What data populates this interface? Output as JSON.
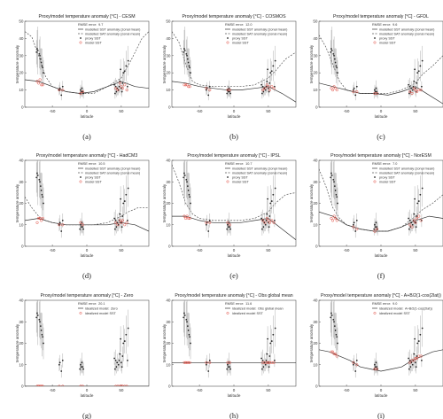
{
  "figure": {
    "colors": {
      "data": "#222222",
      "error_bar": "#9a9a9a",
      "model": "#e0483d",
      "sst_line": "#333333",
      "sat_line": "#555555"
    },
    "common_xlabel": "latitude",
    "common_ylabel": "temperature anomaly",
    "proxy_sst": {
      "lat": [
        -73,
        -72,
        -71,
        -69,
        -68,
        -67,
        -66,
        -65,
        -64,
        -63,
        -40,
        -39,
        -37,
        -35,
        -10,
        -9,
        -8,
        -7,
        -6,
        -5,
        40,
        41,
        42,
        43,
        44,
        46,
        47,
        48,
        49,
        50,
        51,
        52,
        53,
        55,
        57,
        59,
        60
      ],
      "value": [
        32,
        34,
        33,
        31,
        30,
        28,
        26,
        24,
        23,
        20,
        10,
        11,
        7,
        12,
        8,
        10,
        9,
        11,
        9,
        8,
        13,
        8,
        12,
        9,
        11,
        10,
        12,
        15,
        22,
        11,
        9,
        14,
        20,
        21,
        24,
        12,
        27
      ]
    },
    "row_headers": [
      "RMSE error:",
      "modelled SST anomaly (zonal mean)",
      "modelled SAT anomaly (zonal mean)",
      "proxy SST",
      "model SST",
      "idealized model:",
      "idealized model SST"
    ]
  },
  "panels": [
    {
      "letter": "(a)",
      "title": "Proxy/model temperature anomaly [°C] - CESM",
      "xlabel": "latitude",
      "ylabel": "temperature anomaly",
      "rmse": "9.7",
      "ylim": [
        0,
        50
      ],
      "legend": "top-right",
      "model_sst": [
        [
          -72,
          15
        ],
        [
          -70,
          14
        ],
        [
          -68,
          16
        ],
        [
          -66,
          13
        ],
        [
          -64,
          13
        ],
        [
          -40,
          10
        ],
        [
          -35,
          10
        ],
        [
          -9,
          8
        ],
        [
          -6,
          9
        ],
        [
          42,
          11
        ],
        [
          45,
          10
        ],
        [
          48,
          14
        ],
        [
          50,
          12
        ],
        [
          52,
          11
        ],
        [
          55,
          13
        ],
        [
          58,
          10
        ]
      ],
      "sst_line": [
        [
          -90,
          16
        ],
        [
          -70,
          15
        ],
        [
          -50,
          12
        ],
        [
          -30,
          9
        ],
        [
          -10,
          8
        ],
        [
          10,
          9
        ],
        [
          30,
          12
        ],
        [
          50,
          15
        ],
        [
          70,
          12
        ],
        [
          90,
          11
        ]
      ],
      "sat_line": [
        [
          -90,
          44
        ],
        [
          -80,
          41
        ],
        [
          -70,
          30
        ],
        [
          -60,
          18
        ],
        [
          -50,
          12
        ],
        [
          -30,
          9
        ],
        [
          -10,
          8
        ],
        [
          10,
          8
        ],
        [
          30,
          12
        ],
        [
          50,
          17
        ],
        [
          65,
          28
        ],
        [
          80,
          40
        ],
        [
          90,
          44
        ]
      ]
    },
    {
      "letter": "(b)",
      "title": "Proxy/model temperature anomaly [°C] - COSMOS",
      "xlabel": "latitude",
      "ylabel": "temperature anomaly",
      "rmse": "12.0",
      "ylim": [
        0,
        50
      ],
      "legend": "top-right",
      "model_sst": [
        [
          -72,
          13
        ],
        [
          -70,
          13
        ],
        [
          -68,
          13
        ],
        [
          -66,
          12
        ],
        [
          -64,
          12
        ],
        [
          -40,
          11
        ],
        [
          -35,
          10
        ],
        [
          -9,
          10
        ],
        [
          -6,
          10
        ],
        [
          42,
          10
        ],
        [
          45,
          11
        ],
        [
          48,
          13
        ],
        [
          50,
          12
        ],
        [
          52,
          10
        ],
        [
          55,
          12
        ],
        [
          58,
          11
        ]
      ],
      "sst_line": [
        [
          -90,
          15
        ],
        [
          -70,
          14
        ],
        [
          -50,
          12
        ],
        [
          -30,
          11
        ],
        [
          -10,
          10
        ],
        [
          10,
          10
        ],
        [
          30,
          11
        ],
        [
          50,
          12
        ],
        [
          70,
          8
        ],
        [
          90,
          3
        ]
      ],
      "sat_line": [
        [
          -90,
          44
        ],
        [
          -80,
          38
        ],
        [
          -70,
          25
        ],
        [
          -60,
          15
        ],
        [
          -50,
          13
        ],
        [
          -30,
          12
        ],
        [
          -10,
          12
        ],
        [
          10,
          12
        ],
        [
          30,
          13
        ],
        [
          50,
          17
        ],
        [
          60,
          21
        ],
        [
          75,
          28
        ],
        [
          90,
          32
        ]
      ]
    },
    {
      "letter": "(c)",
      "title": "Proxy/model temperature anomaly [°C] - GFDL",
      "xlabel": "latitude",
      "ylabel": "temperature anomaly",
      "rmse": "9.6",
      "ylim": [
        0,
        50
      ],
      "legend": "top-right",
      "model_sst": [
        [
          -72,
          11
        ],
        [
          -70,
          10
        ],
        [
          -68,
          12
        ],
        [
          -66,
          11
        ],
        [
          -64,
          10
        ],
        [
          -40,
          9
        ],
        [
          -35,
          9
        ],
        [
          -9,
          8
        ],
        [
          -6,
          8
        ],
        [
          42,
          9
        ],
        [
          45,
          8
        ],
        [
          48,
          11
        ],
        [
          50,
          10
        ],
        [
          52,
          9
        ],
        [
          55,
          10
        ],
        [
          58,
          10
        ]
      ],
      "sst_line": [
        [
          -90,
          14
        ],
        [
          -70,
          12
        ],
        [
          -50,
          10
        ],
        [
          -30,
          8
        ],
        [
          -10,
          8
        ],
        [
          10,
          7
        ],
        [
          30,
          9
        ],
        [
          50,
          12
        ],
        [
          70,
          7
        ],
        [
          90,
          2
        ]
      ],
      "sat_line": [
        [
          -90,
          42
        ],
        [
          -80,
          35
        ],
        [
          -70,
          25
        ],
        [
          -60,
          15
        ],
        [
          -50,
          10
        ],
        [
          -30,
          8
        ],
        [
          -10,
          8
        ],
        [
          10,
          8
        ],
        [
          30,
          10
        ],
        [
          50,
          14
        ],
        [
          60,
          19
        ],
        [
          75,
          24
        ],
        [
          90,
          30
        ]
      ]
    },
    {
      "letter": "(d)",
      "title": "Proxy/model temperature anomaly [°C] - HadCM3",
      "xlabel": "latitude",
      "ylabel": "temperature anomaly",
      "rmse": "10.5",
      "ylim": [
        0,
        40
      ],
      "legend": "top-right",
      "model_sst": [
        [
          -72,
          11
        ],
        [
          -70,
          13
        ],
        [
          -68,
          13
        ],
        [
          -66,
          12
        ],
        [
          -64,
          13
        ],
        [
          -40,
          10
        ],
        [
          -35,
          10
        ],
        [
          -9,
          11
        ],
        [
          -6,
          10
        ],
        [
          42,
          11
        ],
        [
          45,
          10
        ],
        [
          48,
          12
        ],
        [
          50,
          11
        ],
        [
          52,
          12
        ],
        [
          55,
          10
        ],
        [
          58,
          11
        ]
      ],
      "sst_line": [
        [
          -90,
          12
        ],
        [
          -70,
          13
        ],
        [
          -50,
          11
        ],
        [
          -30,
          10
        ],
        [
          -10,
          10
        ],
        [
          10,
          10
        ],
        [
          30,
          10
        ],
        [
          50,
          11
        ],
        [
          70,
          10
        ],
        [
          90,
          7
        ]
      ],
      "sat_line": [
        [
          -90,
          23
        ],
        [
          -80,
          18
        ],
        [
          -70,
          14
        ],
        [
          -60,
          12
        ],
        [
          -50,
          11
        ],
        [
          -30,
          10
        ],
        [
          -10,
          10
        ],
        [
          10,
          10
        ],
        [
          30,
          11
        ],
        [
          50,
          14
        ],
        [
          60,
          16
        ],
        [
          75,
          18
        ],
        [
          90,
          18
        ]
      ]
    },
    {
      "letter": "(e)",
      "title": "Proxy/model temperature anomaly [°C] - IPSL",
      "xlabel": "latitude",
      "ylabel": "temperature anomaly",
      "rmse": "10.7",
      "ylim": [
        0,
        40
      ],
      "legend": "top-right",
      "model_sst": [
        [
          -72,
          14
        ],
        [
          -70,
          13
        ],
        [
          -68,
          14
        ],
        [
          -66,
          13
        ],
        [
          -64,
          13
        ],
        [
          -40,
          11
        ],
        [
          -35,
          11
        ],
        [
          -9,
          11
        ],
        [
          -6,
          10
        ],
        [
          42,
          12
        ],
        [
          45,
          11
        ],
        [
          48,
          13
        ],
        [
          50,
          12
        ],
        [
          52,
          11
        ],
        [
          55,
          12
        ],
        [
          58,
          11
        ]
      ],
      "sst_line": [
        [
          -90,
          14
        ],
        [
          -70,
          14
        ],
        [
          -50,
          12
        ],
        [
          -30,
          11
        ],
        [
          -10,
          11
        ],
        [
          10,
          11
        ],
        [
          30,
          12
        ],
        [
          50,
          13
        ],
        [
          70,
          8
        ],
        [
          90,
          3
        ]
      ],
      "sat_line": [
        [
          -90,
          38
        ],
        [
          -80,
          30
        ],
        [
          -70,
          20
        ],
        [
          -60,
          15
        ],
        [
          -50,
          13
        ],
        [
          -30,
          12
        ],
        [
          -10,
          12
        ],
        [
          10,
          12
        ],
        [
          30,
          13
        ],
        [
          50,
          16
        ],
        [
          60,
          20
        ],
        [
          75,
          24
        ],
        [
          90,
          25
        ]
      ]
    },
    {
      "letter": "(f)",
      "title": "Proxy/model temperature anomaly [°C] - NorESM",
      "xlabel": "latitude",
      "ylabel": "temperature anomaly",
      "rmse": "7.0",
      "ylim": [
        0,
        40
      ],
      "legend": "top-right",
      "model_sst": [
        [
          -72,
          13
        ],
        [
          -70,
          12
        ],
        [
          -68,
          14
        ],
        [
          -66,
          13
        ],
        [
          -64,
          12
        ],
        [
          -40,
          9
        ],
        [
          -35,
          8
        ],
        [
          -9,
          7
        ],
        [
          -6,
          8
        ],
        [
          42,
          10
        ],
        [
          45,
          9
        ],
        [
          48,
          12
        ],
        [
          50,
          11
        ],
        [
          52,
          13
        ],
        [
          55,
          14
        ],
        [
          58,
          12
        ]
      ],
      "sst_line": [
        [
          -90,
          16
        ],
        [
          -70,
          14
        ],
        [
          -50,
          10
        ],
        [
          -30,
          8
        ],
        [
          -10,
          7
        ],
        [
          10,
          7
        ],
        [
          30,
          9
        ],
        [
          50,
          12
        ],
        [
          70,
          14
        ],
        [
          90,
          13
        ]
      ],
      "sat_line": [
        [
          -90,
          36
        ],
        [
          -80,
          28
        ],
        [
          -70,
          18
        ],
        [
          -60,
          13
        ],
        [
          -50,
          10
        ],
        [
          -30,
          8
        ],
        [
          -10,
          7
        ],
        [
          10,
          7
        ],
        [
          30,
          9
        ],
        [
          50,
          14
        ],
        [
          60,
          17
        ],
        [
          75,
          20
        ],
        [
          90,
          24
        ]
      ]
    },
    {
      "letter": "(g)",
      "title": "Proxy/model temperature anomaly [°C] - Zero",
      "xlabel": "latitude",
      "ylabel": "temperature anomaly",
      "rmse": "20.1",
      "ylim": [
        0,
        40
      ],
      "legend": "top-right",
      "ideal_label": "Zero",
      "model_sst": [
        [
          -72,
          0
        ],
        [
          -70,
          0
        ],
        [
          -68,
          0
        ],
        [
          -66,
          0
        ],
        [
          -64,
          0
        ],
        [
          -40,
          0
        ],
        [
          -35,
          0
        ],
        [
          -9,
          0
        ],
        [
          -6,
          0
        ],
        [
          42,
          0
        ],
        [
          45,
          0
        ],
        [
          48,
          0
        ],
        [
          50,
          0
        ],
        [
          52,
          0
        ],
        [
          55,
          0
        ],
        [
          58,
          0
        ]
      ],
      "sst_line": [
        [
          -90,
          0
        ],
        [
          90,
          0
        ]
      ]
    },
    {
      "letter": "(h)",
      "title": "Proxy/model temperature anomaly [°C] - Obs global mean",
      "xlabel": "latitude",
      "ylabel": "temperature anomaly",
      "rmse": "11.6",
      "ylim": [
        0,
        40
      ],
      "legend": "top-right",
      "ideal_label": "Obs global mean",
      "model_sst": [
        [
          -72,
          11
        ],
        [
          -70,
          11
        ],
        [
          -68,
          11
        ],
        [
          -66,
          11
        ],
        [
          -64,
          11
        ],
        [
          -40,
          11
        ],
        [
          -35,
          11
        ],
        [
          -9,
          11
        ],
        [
          -6,
          11
        ],
        [
          42,
          11
        ],
        [
          45,
          11
        ],
        [
          48,
          11
        ],
        [
          50,
          11
        ],
        [
          52,
          11
        ],
        [
          55,
          11
        ],
        [
          58,
          11
        ]
      ],
      "sst_line": [
        [
          -90,
          11
        ],
        [
          90,
          11
        ]
      ]
    },
    {
      "letter": "(i)",
      "title": "Proxy/model temperature anomaly [°C] - A+B/2(1-cos(2lat))",
      "xlabel": "latitude",
      "ylabel": "temperature anomaly",
      "rmse": "9.0",
      "ylim": [
        0,
        40
      ],
      "legend": "top-right",
      "ideal_label": "A+B/2(1-cos(2lat))",
      "model_sst": [
        [
          -72,
          16
        ],
        [
          -70,
          16
        ],
        [
          -68,
          15
        ],
        [
          -66,
          15
        ],
        [
          -64,
          14
        ],
        [
          -40,
          11
        ],
        [
          -35,
          10
        ],
        [
          -9,
          8
        ],
        [
          -6,
          8
        ],
        [
          42,
          11
        ],
        [
          45,
          12
        ],
        [
          48,
          12
        ],
        [
          50,
          13
        ],
        [
          52,
          13
        ],
        [
          55,
          14
        ],
        [
          58,
          14
        ]
      ],
      "sst_line": [
        [
          -90,
          17
        ],
        [
          -75,
          16
        ],
        [
          -60,
          14
        ],
        [
          -45,
          12
        ],
        [
          -30,
          9
        ],
        [
          -15,
          8
        ],
        [
          0,
          7
        ],
        [
          15,
          8
        ],
        [
          30,
          9
        ],
        [
          45,
          12
        ],
        [
          60,
          14
        ],
        [
          75,
          16
        ],
        [
          90,
          17
        ]
      ]
    }
  ]
}
